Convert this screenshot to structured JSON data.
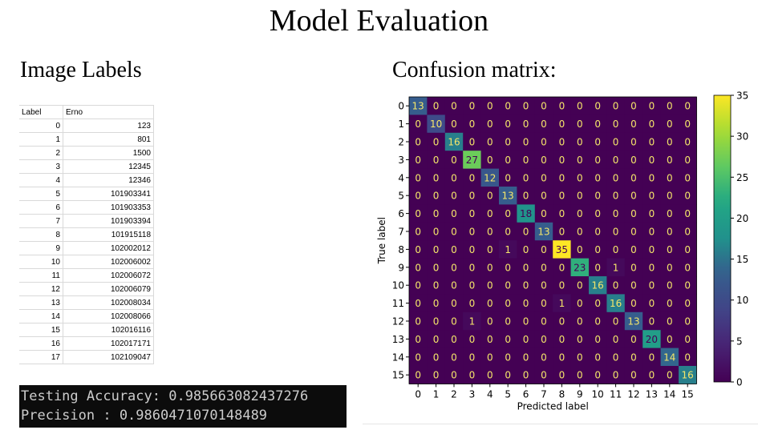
{
  "page": {
    "title": "Model Evaluation",
    "left_heading": "Image Labels",
    "right_heading": "Confusion matrix:"
  },
  "label_table": {
    "headers": [
      "Label",
      "Erno"
    ],
    "rows": [
      [
        "0",
        "123"
      ],
      [
        "1",
        "801"
      ],
      [
        "2",
        "1500"
      ],
      [
        "3",
        "12345"
      ],
      [
        "4",
        "12346"
      ],
      [
        "5",
        "101903341"
      ],
      [
        "6",
        "101903353"
      ],
      [
        "7",
        "101903394"
      ],
      [
        "8",
        "101915118"
      ],
      [
        "9",
        "102002012"
      ],
      [
        "10",
        "102006002"
      ],
      [
        "11",
        "102006072"
      ],
      [
        "12",
        "102006079"
      ],
      [
        "13",
        "102008034"
      ],
      [
        "14",
        "102008066"
      ],
      [
        "15",
        "102016116"
      ],
      [
        "16",
        "102017171"
      ],
      [
        "17",
        "102109047"
      ]
    ]
  },
  "console": {
    "line1": "Testing Accuracy: 0.985663082437276",
    "line2": "Precision : 0.9860471070148489"
  },
  "chart_data": {
    "type": "heatmap",
    "xlabel": "Predicted label",
    "ylabel": "True label",
    "x_categories": [
      "0",
      "1",
      "2",
      "3",
      "4",
      "5",
      "6",
      "7",
      "8",
      "9",
      "10",
      "11",
      "12",
      "13",
      "14",
      "15"
    ],
    "y_categories": [
      "0",
      "1",
      "2",
      "3",
      "4",
      "5",
      "6",
      "7",
      "8",
      "9",
      "10",
      "11",
      "12",
      "13",
      "14",
      "15"
    ],
    "colorbar_range": [
      0,
      35
    ],
    "colorbar_ticks": [
      0,
      5,
      10,
      15,
      20,
      25,
      30,
      35
    ],
    "colormap": "viridis",
    "matrix": [
      [
        13,
        0,
        0,
        0,
        0,
        0,
        0,
        0,
        0,
        0,
        0,
        0,
        0,
        0,
        0,
        0
      ],
      [
        0,
        10,
        0,
        0,
        0,
        0,
        0,
        0,
        0,
        0,
        0,
        0,
        0,
        0,
        0,
        0
      ],
      [
        0,
        0,
        16,
        0,
        0,
        0,
        0,
        0,
        0,
        0,
        0,
        0,
        0,
        0,
        0,
        0
      ],
      [
        0,
        0,
        0,
        27,
        0,
        0,
        0,
        0,
        0,
        0,
        0,
        0,
        0,
        0,
        0,
        0
      ],
      [
        0,
        0,
        0,
        0,
        12,
        0,
        0,
        0,
        0,
        0,
        0,
        0,
        0,
        0,
        0,
        0
      ],
      [
        0,
        0,
        0,
        0,
        0,
        13,
        0,
        0,
        0,
        0,
        0,
        0,
        0,
        0,
        0,
        0
      ],
      [
        0,
        0,
        0,
        0,
        0,
        0,
        18,
        0,
        0,
        0,
        0,
        0,
        0,
        0,
        0,
        0
      ],
      [
        0,
        0,
        0,
        0,
        0,
        0,
        0,
        13,
        0,
        0,
        0,
        0,
        0,
        0,
        0,
        0
      ],
      [
        0,
        0,
        0,
        0,
        0,
        1,
        0,
        0,
        35,
        0,
        0,
        0,
        0,
        0,
        0,
        0
      ],
      [
        0,
        0,
        0,
        0,
        0,
        0,
        0,
        0,
        0,
        23,
        0,
        1,
        0,
        0,
        0,
        0
      ],
      [
        0,
        0,
        0,
        0,
        0,
        0,
        0,
        0,
        0,
        0,
        16,
        0,
        0,
        0,
        0,
        0
      ],
      [
        0,
        0,
        0,
        0,
        0,
        0,
        0,
        0,
        1,
        0,
        0,
        16,
        0,
        0,
        0,
        0
      ],
      [
        0,
        0,
        0,
        1,
        0,
        0,
        0,
        0,
        0,
        0,
        0,
        0,
        13,
        0,
        0,
        0
      ],
      [
        0,
        0,
        0,
        0,
        0,
        0,
        0,
        0,
        0,
        0,
        0,
        0,
        0,
        20,
        0,
        0
      ],
      [
        0,
        0,
        0,
        0,
        0,
        0,
        0,
        0,
        0,
        0,
        0,
        0,
        0,
        0,
        14,
        0
      ],
      [
        0,
        0,
        0,
        0,
        0,
        0,
        0,
        0,
        0,
        0,
        0,
        0,
        0,
        0,
        0,
        16
      ]
    ]
  }
}
